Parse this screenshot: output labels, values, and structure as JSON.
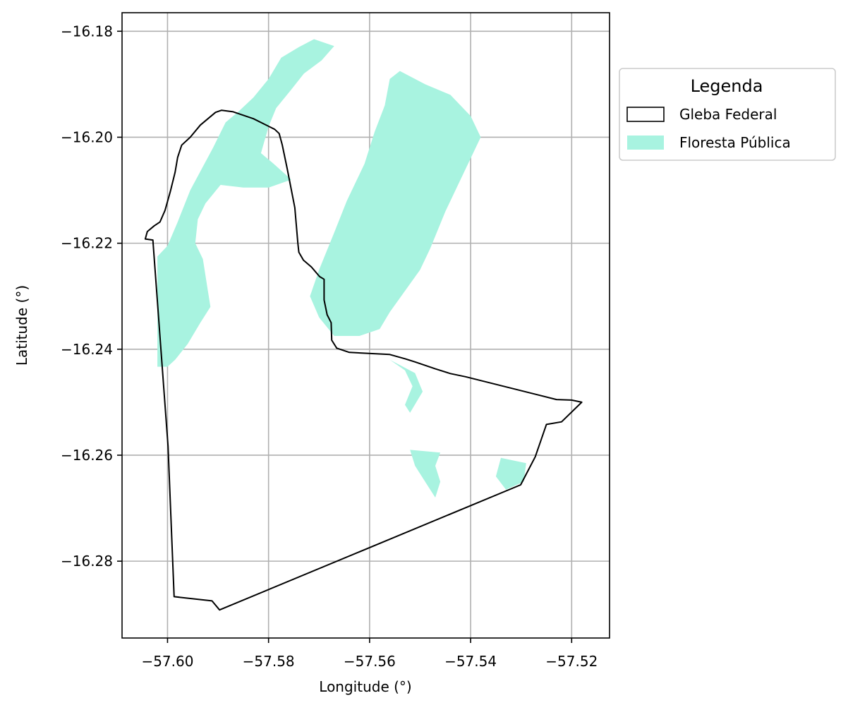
{
  "chart_data": {
    "type": "map",
    "xlabel": "Longitude (°)",
    "ylabel": "Latitude (°)",
    "xlim": [
      -57.609,
      -57.5125
    ],
    "ylim": [
      -16.2945,
      -16.1765
    ],
    "x_ticks": [
      -57.6,
      -57.58,
      -57.56,
      -57.54,
      -57.52
    ],
    "y_ticks": [
      -16.18,
      -16.2,
      -16.22,
      -16.24,
      -16.26,
      -16.28
    ],
    "x_tick_labels": [
      "−57.60",
      "−57.58",
      "−57.56",
      "−57.54",
      "−57.52"
    ],
    "y_tick_labels": [
      "−16.18",
      "−16.20",
      "−16.22",
      "−16.24",
      "−16.26",
      "−16.28"
    ],
    "grid": true,
    "legend": {
      "title": "Legenda",
      "placement": "outside-upper-right",
      "entries": [
        {
          "label": "Gleba Federal",
          "style": "outline",
          "color": "#000000"
        },
        {
          "label": "Floresta Pública",
          "style": "fill",
          "color": "#a8f3e0"
        }
      ]
    },
    "layers": {
      "gleba_federal": [
        [
          -57.6044,
          -16.2192
        ],
        [
          -57.6029,
          -16.2194
        ],
        [
          -57.6026,
          -16.2232
        ],
        [
          -57.5999,
          -16.2583
        ],
        [
          -57.5987,
          -16.2867
        ],
        [
          -57.5912,
          -16.2875
        ],
        [
          -57.5897,
          -16.2892
        ],
        [
          -57.5301,
          -16.2656
        ],
        [
          -57.5272,
          -16.2603
        ],
        [
          -57.525,
          -16.2542
        ],
        [
          -57.522,
          -16.2537
        ],
        [
          -57.518,
          -16.25
        ],
        [
          -57.52,
          -16.2496
        ],
        [
          -57.523,
          -16.2495
        ],
        [
          -57.541,
          -16.2452
        ],
        [
          -57.544,
          -16.2446
        ],
        [
          -57.547,
          -16.2437
        ],
        [
          -57.551,
          -16.2424
        ],
        [
          -57.553,
          -16.2418
        ],
        [
          -57.556,
          -16.241
        ],
        [
          -57.564,
          -16.2406
        ],
        [
          -57.5665,
          -16.2398
        ],
        [
          -57.5675,
          -16.2383
        ],
        [
          -57.5676,
          -16.235
        ],
        [
          -57.5684,
          -16.2335
        ],
        [
          -57.569,
          -16.2307
        ],
        [
          -57.569,
          -16.2268
        ],
        [
          -57.5699,
          -16.2263
        ],
        [
          -57.5715,
          -16.2245
        ],
        [
          -57.5731,
          -16.2232
        ],
        [
          -57.574,
          -16.2217
        ],
        [
          -57.5742,
          -16.22
        ],
        [
          -57.5748,
          -16.2133
        ],
        [
          -57.5763,
          -16.206
        ],
        [
          -57.5773,
          -16.2014
        ],
        [
          -57.5779,
          -16.1993
        ],
        [
          -57.5788,
          -16.1985
        ],
        [
          -57.583,
          -16.1965
        ],
        [
          -57.587,
          -16.1952
        ],
        [
          -57.5893,
          -16.1949
        ],
        [
          -57.5905,
          -16.1953
        ],
        [
          -57.5935,
          -16.1977
        ],
        [
          -57.5955,
          -16.2
        ],
        [
          -57.5972,
          -16.2015
        ],
        [
          -57.598,
          -16.2038
        ],
        [
          -57.5985,
          -16.2066
        ],
        [
          -57.5994,
          -16.2101
        ],
        [
          -57.6005,
          -16.2138
        ],
        [
          -57.6015,
          -16.216
        ],
        [
          -57.6026,
          -16.2167
        ],
        [
          -57.604,
          -16.2178
        ]
      ],
      "floresta_publica": [
        [
          [
            -57.6,
            -16.2205
          ],
          [
            -57.598,
            -16.216
          ],
          [
            -57.5955,
            -16.21
          ],
          [
            -57.591,
            -16.202
          ],
          [
            -57.5885,
            -16.1972
          ],
          [
            -57.586,
            -16.1952
          ],
          [
            -57.583,
            -16.1925
          ],
          [
            -57.58,
            -16.189
          ],
          [
            -57.5775,
            -16.185
          ],
          [
            -57.574,
            -16.183
          ],
          [
            -57.571,
            -16.1815
          ],
          [
            -57.567,
            -16.1828
          ],
          [
            -57.5695,
            -16.1855
          ],
          [
            -57.573,
            -16.188
          ],
          [
            -57.5755,
            -16.191
          ],
          [
            -57.5785,
            -16.1945
          ],
          [
            -57.58,
            -16.198
          ],
          [
            -57.5815,
            -16.203
          ],
          [
            -57.579,
            -16.205
          ],
          [
            -57.5755,
            -16.208
          ],
          [
            -57.58,
            -16.2095
          ],
          [
            -57.585,
            -16.2095
          ],
          [
            -57.5895,
            -16.209
          ],
          [
            -57.5925,
            -16.2125
          ],
          [
            -57.594,
            -16.2155
          ],
          [
            -57.5945,
            -16.22
          ],
          [
            -57.593,
            -16.223
          ],
          [
            -57.592,
            -16.229
          ],
          [
            -57.5915,
            -16.232
          ],
          [
            -57.5935,
            -16.235
          ],
          [
            -57.596,
            -16.239
          ],
          [
            -57.5985,
            -16.242
          ],
          [
            -57.6,
            -16.2433
          ],
          [
            -57.602,
            -16.2433
          ],
          [
            -57.602,
            -16.2225
          ]
        ],
        [
          [
            -57.5718,
            -16.23
          ],
          [
            -57.57,
            -16.225
          ],
          [
            -57.567,
            -16.218
          ],
          [
            -57.5645,
            -16.212
          ],
          [
            -57.561,
            -16.205
          ],
          [
            -57.559,
            -16.199
          ],
          [
            -57.557,
            -16.194
          ],
          [
            -57.556,
            -16.189
          ],
          [
            -57.554,
            -16.1875
          ],
          [
            -57.549,
            -16.19
          ],
          [
            -57.544,
            -16.192
          ],
          [
            -57.54,
            -16.196
          ],
          [
            -57.538,
            -16.2
          ],
          [
            -57.541,
            -16.206
          ],
          [
            -57.545,
            -16.214
          ],
          [
            -57.548,
            -16.221
          ],
          [
            -57.55,
            -16.225
          ],
          [
            -57.553,
            -16.229
          ],
          [
            -57.556,
            -16.233
          ],
          [
            -57.558,
            -16.2362
          ],
          [
            -57.562,
            -16.2375
          ],
          [
            -57.567,
            -16.2375
          ],
          [
            -57.57,
            -16.234
          ]
        ],
        [
          [
            -57.556,
            -16.242
          ],
          [
            -57.553,
            -16.244
          ],
          [
            -57.5515,
            -16.247
          ],
          [
            -57.553,
            -16.2505
          ],
          [
            -57.552,
            -16.252
          ],
          [
            -57.5495,
            -16.248
          ],
          [
            -57.551,
            -16.2445
          ]
        ],
        [
          [
            -57.552,
            -16.259
          ],
          [
            -57.546,
            -16.2595
          ],
          [
            -57.547,
            -16.262
          ],
          [
            -57.546,
            -16.265
          ],
          [
            -57.547,
            -16.268
          ],
          [
            -57.549,
            -16.265
          ],
          [
            -57.551,
            -16.262
          ]
        ],
        [
          [
            -57.534,
            -16.2605
          ],
          [
            -57.529,
            -16.2615
          ],
          [
            -57.5295,
            -16.265
          ],
          [
            -57.533,
            -16.2665
          ],
          [
            -57.535,
            -16.264
          ]
        ]
      ]
    }
  }
}
